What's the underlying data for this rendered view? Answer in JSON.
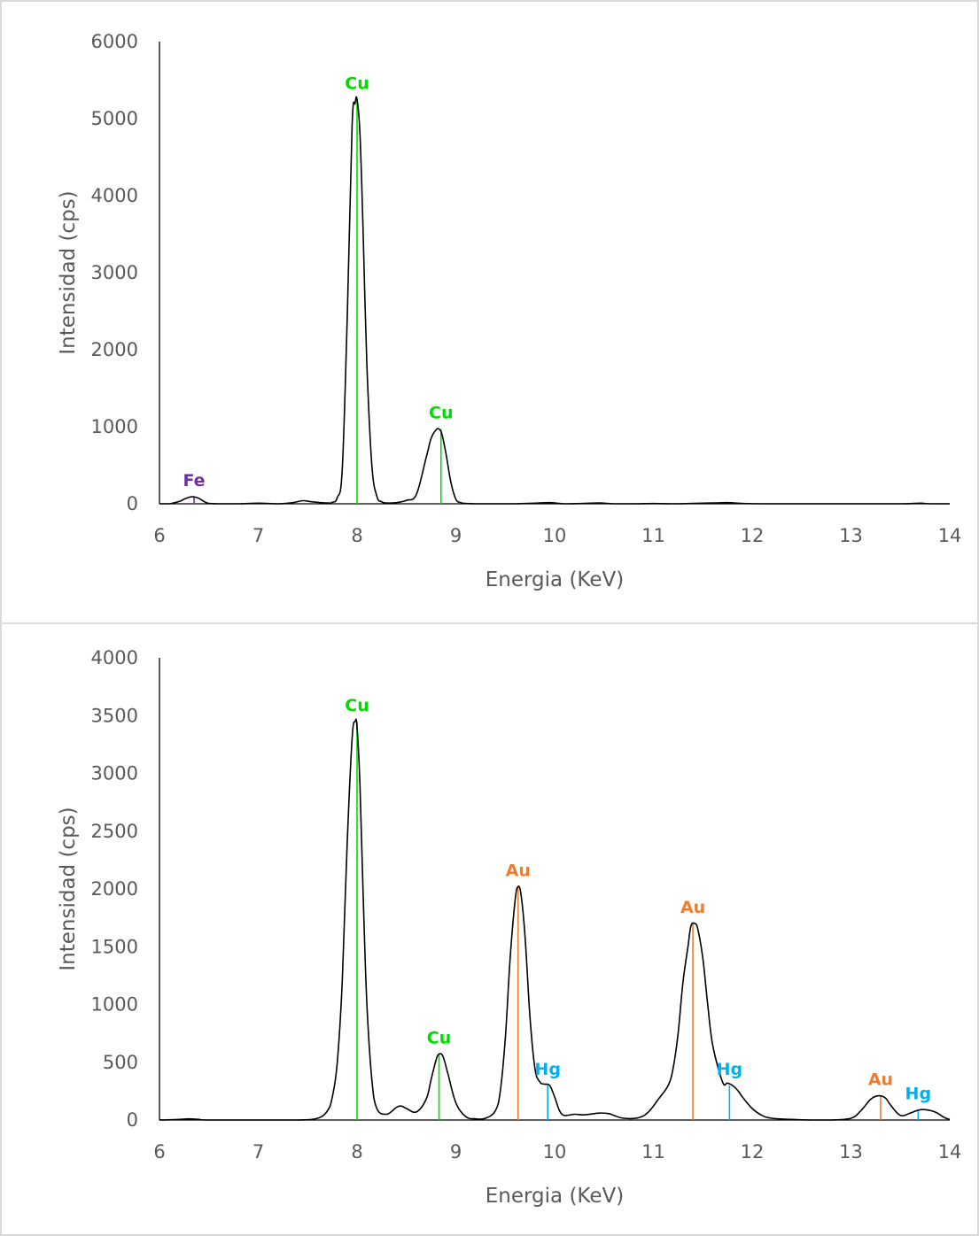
{
  "colors": {
    "Cu": "#00dc00",
    "Fe": "#7030a0",
    "Au": "#ed7d31",
    "Hg": "#00b0f0",
    "line": "#000000",
    "text": "#595959"
  },
  "chart_data": [
    {
      "type": "line",
      "xlabel": "Energia (KeV)",
      "ylabel": "Intensidad (cps)",
      "xlim": [
        6,
        14
      ],
      "ylim": [
        0,
        6000
      ],
      "xticks": [
        "6",
        "7",
        "8",
        "9",
        "10",
        "11",
        "12",
        "13",
        "14"
      ],
      "yticks": [
        "0",
        "1000",
        "2000",
        "3000",
        "4000",
        "5000",
        "6000"
      ],
      "grid": false,
      "x": [
        6.0,
        6.1,
        6.2,
        6.25,
        6.3,
        6.35,
        6.4,
        6.45,
        6.5,
        6.6,
        6.8,
        7.0,
        7.2,
        7.35,
        7.45,
        7.55,
        7.7,
        7.75,
        7.8,
        7.85,
        7.9,
        7.95,
        7.98,
        8.0,
        8.03,
        8.06,
        8.1,
        8.15,
        8.2,
        8.25,
        8.3,
        8.4,
        8.5,
        8.6,
        8.7,
        8.75,
        8.8,
        8.83,
        8.86,
        8.9,
        8.95,
        9.0,
        9.05,
        9.1,
        9.2,
        9.4,
        9.6,
        9.8,
        9.95,
        10.1,
        10.3,
        10.45,
        10.6,
        10.8,
        11.0,
        11.2,
        11.4,
        11.6,
        11.75,
        11.9,
        12.1,
        12.5,
        13.0,
        13.5,
        13.7,
        13.8,
        14.0
      ],
      "values": [
        0,
        0,
        30,
        60,
        85,
        90,
        70,
        30,
        5,
        0,
        0,
        8,
        0,
        15,
        40,
        25,
        10,
        20,
        80,
        450,
        2400,
        4900,
        5200,
        5250,
        4800,
        3600,
        1800,
        500,
        100,
        25,
        10,
        15,
        45,
        120,
        600,
        850,
        960,
        970,
        900,
        650,
        280,
        60,
        15,
        5,
        0,
        0,
        0,
        8,
        15,
        0,
        5,
        10,
        0,
        0,
        3,
        0,
        5,
        10,
        15,
        5,
        0,
        0,
        0,
        0,
        8,
        0,
        0
      ],
      "peaks": [
        {
          "element": "Fe",
          "x": 6.35,
          "y": 90
        },
        {
          "element": "Cu",
          "x": 8.0,
          "y": 5250
        },
        {
          "element": "Cu",
          "x": 8.85,
          "y": 970
        }
      ]
    },
    {
      "type": "line",
      "xlabel": "Energia (KeV)",
      "ylabel": "Intensidad (cps)",
      "xlim": [
        6,
        14
      ],
      "ylim": [
        0,
        4000
      ],
      "xticks": [
        "6",
        "7",
        "8",
        "9",
        "10",
        "11",
        "12",
        "13",
        "14"
      ],
      "yticks": [
        "0",
        "500",
        "1000",
        "1500",
        "2000",
        "2500",
        "3000",
        "3500",
        "4000"
      ],
      "grid": false,
      "x": [
        6.0,
        6.2,
        6.3,
        6.4,
        6.5,
        7.0,
        7.4,
        7.6,
        7.7,
        7.75,
        7.8,
        7.85,
        7.9,
        7.95,
        7.98,
        8.0,
        8.03,
        8.06,
        8.1,
        8.15,
        8.2,
        8.3,
        8.4,
        8.45,
        8.5,
        8.6,
        8.7,
        8.75,
        8.8,
        8.83,
        8.87,
        8.92,
        9.0,
        9.1,
        9.2,
        9.3,
        9.4,
        9.45,
        9.5,
        9.55,
        9.6,
        9.63,
        9.66,
        9.7,
        9.75,
        9.8,
        9.85,
        9.9,
        9.95,
        10.0,
        10.05,
        10.1,
        10.2,
        10.3,
        10.45,
        10.55,
        10.6,
        10.7,
        10.85,
        10.95,
        11.05,
        11.15,
        11.2,
        11.25,
        11.3,
        11.35,
        11.38,
        11.42,
        11.45,
        11.5,
        11.55,
        11.6,
        11.7,
        11.75,
        11.8,
        11.85,
        11.9,
        12.0,
        12.1,
        12.2,
        12.4,
        12.6,
        12.8,
        13.0,
        13.1,
        13.2,
        13.28,
        13.35,
        13.4,
        13.5,
        13.6,
        13.68,
        13.75,
        13.85,
        13.95,
        14.0
      ],
      "values": [
        0,
        5,
        10,
        5,
        0,
        0,
        0,
        15,
        80,
        200,
        500,
        1200,
        2400,
        3300,
        3450,
        3400,
        2900,
        2000,
        1000,
        350,
        100,
        50,
        110,
        120,
        100,
        70,
        180,
        350,
        520,
        570,
        550,
        400,
        150,
        30,
        10,
        15,
        80,
        250,
        700,
        1400,
        1900,
        2020,
        1950,
        1600,
        900,
        450,
        330,
        310,
        300,
        200,
        80,
        40,
        50,
        45,
        60,
        55,
        40,
        15,
        20,
        70,
        180,
        300,
        450,
        750,
        1200,
        1500,
        1680,
        1700,
        1650,
        1400,
        1000,
        650,
        330,
        320,
        300,
        260,
        200,
        100,
        40,
        15,
        5,
        0,
        0,
        15,
        80,
        180,
        210,
        190,
        130,
        40,
        60,
        85,
        90,
        70,
        20,
        5
      ],
      "peaks": [
        {
          "element": "Cu",
          "x": 8.0,
          "y": 3450
        },
        {
          "element": "Cu",
          "x": 8.83,
          "y": 570
        },
        {
          "element": "Au",
          "x": 9.63,
          "y": 2020
        },
        {
          "element": "Hg",
          "x": 9.93,
          "y": 300
        },
        {
          "element": "Au",
          "x": 11.4,
          "y": 1700
        },
        {
          "element": "Hg",
          "x": 11.77,
          "y": 300
        },
        {
          "element": "Au",
          "x": 13.3,
          "y": 210
        },
        {
          "element": "Hg",
          "x": 13.68,
          "y": 90
        }
      ]
    }
  ]
}
